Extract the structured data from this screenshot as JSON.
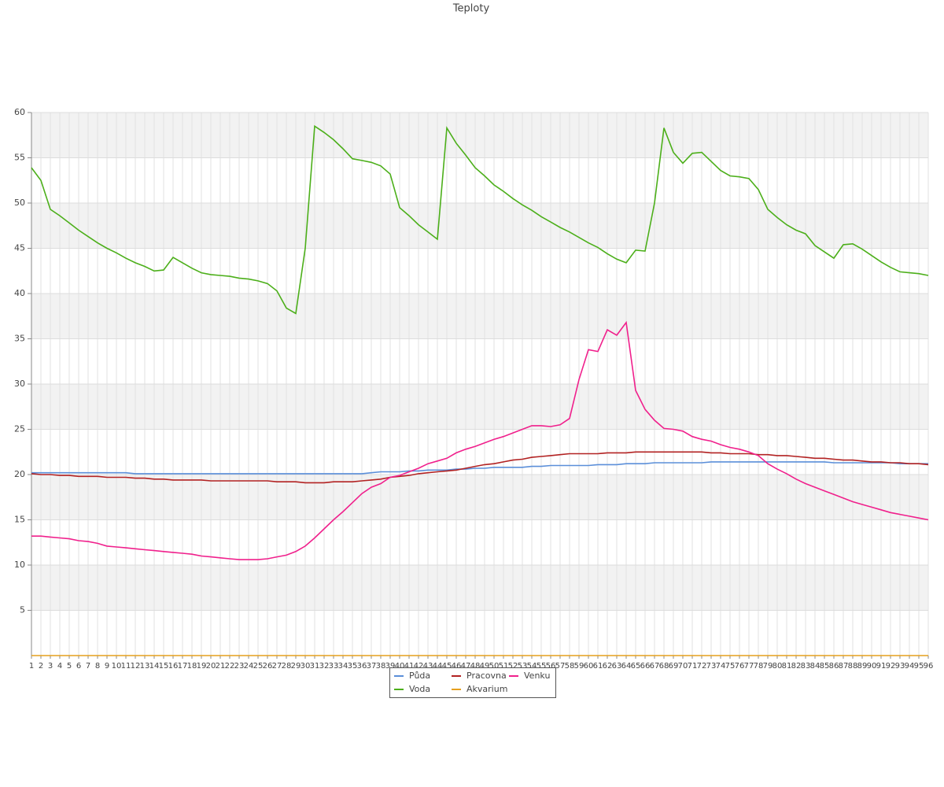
{
  "chart_data": {
    "type": "line",
    "title": "Teploty",
    "categories": [
      1,
      2,
      3,
      4,
      5,
      6,
      7,
      8,
      9,
      10,
      11,
      12,
      13,
      14,
      15,
      16,
      17,
      18,
      19,
      20,
      21,
      22,
      23,
      24,
      25,
      26,
      27,
      28,
      29,
      30,
      31,
      32,
      33,
      34,
      35,
      36,
      37,
      38,
      39,
      40,
      41,
      42,
      43,
      44,
      45,
      46,
      47,
      48,
      49,
      50,
      51,
      52,
      53,
      54,
      55,
      56,
      57,
      58,
      59,
      60,
      61,
      62,
      63,
      64,
      65,
      66,
      67,
      68,
      69,
      70,
      71,
      72,
      73,
      74,
      75,
      76,
      77,
      78,
      79,
      80,
      81,
      82,
      83,
      84,
      85,
      86,
      87,
      88,
      89,
      90,
      91,
      92,
      93,
      94,
      95,
      96
    ],
    "ylim": [
      0,
      60
    ],
    "yticks": [
      5,
      10,
      15,
      20,
      25,
      30,
      35,
      40,
      45,
      50,
      55,
      60
    ],
    "grid": true,
    "legend": "bottom",
    "series": [
      {
        "name": "Půda",
        "color": "#5b8fd9",
        "values": [
          20.2,
          20.2,
          20.2,
          20.2,
          20.2,
          20.2,
          20.2,
          20.2,
          20.2,
          20.2,
          20.2,
          20.1,
          20.1,
          20.1,
          20.1,
          20.1,
          20.1,
          20.1,
          20.1,
          20.1,
          20.1,
          20.1,
          20.1,
          20.1,
          20.1,
          20.1,
          20.1,
          20.1,
          20.1,
          20.1,
          20.1,
          20.1,
          20.1,
          20.1,
          20.1,
          20.1,
          20.2,
          20.3,
          20.3,
          20.3,
          20.4,
          20.4,
          20.5,
          20.5,
          20.5,
          20.6,
          20.6,
          20.7,
          20.7,
          20.8,
          20.8,
          20.8,
          20.8,
          20.9,
          20.9,
          21.0,
          21.0,
          21.0,
          21.0,
          21.0,
          21.1,
          21.1,
          21.1,
          21.2,
          21.2,
          21.2,
          21.3,
          21.3,
          21.3,
          21.3,
          21.3,
          21.3,
          21.4,
          21.4,
          21.4,
          21.4,
          21.4,
          21.4,
          21.4,
          21.4,
          21.4,
          21.4,
          21.4,
          21.4,
          21.4,
          21.3,
          21.3,
          21.3,
          21.3,
          21.3,
          21.3,
          21.3,
          21.2,
          21.2,
          21.2,
          21.2
        ]
      },
      {
        "name": "Voda",
        "color": "#4caf1a",
        "values": [
          53.9,
          52.5,
          49.3,
          48.6,
          47.8,
          47.0,
          46.3,
          45.6,
          45.0,
          44.5,
          43.9,
          43.4,
          43.0,
          42.5,
          42.6,
          44.0,
          43.4,
          42.8,
          42.3,
          42.1,
          42.0,
          41.9,
          41.7,
          41.6,
          41.4,
          41.1,
          40.3,
          38.4,
          37.8,
          45.0,
          58.5,
          57.8,
          57.0,
          56.0,
          54.9,
          54.7,
          54.5,
          54.1,
          53.2,
          49.5,
          48.6,
          47.6,
          46.8,
          46.0,
          58.3,
          56.6,
          55.3,
          53.9,
          53.0,
          52.0,
          51.3,
          50.5,
          49.8,
          49.2,
          48.5,
          47.9,
          47.3,
          46.8,
          46.2,
          45.6,
          45.1,
          44.4,
          43.8,
          43.4,
          44.8,
          44.7,
          50.0,
          58.3,
          55.6,
          54.4,
          55.5,
          55.6,
          54.6,
          53.6,
          53.0,
          52.9,
          52.7,
          51.5,
          49.3,
          48.4,
          47.6,
          47.0,
          46.6,
          45.3,
          44.6,
          43.9,
          45.4,
          45.5,
          44.9,
          44.2,
          43.5,
          42.9,
          42.4,
          42.3,
          42.2,
          42.0
        ]
      },
      {
        "name": "Pracovna",
        "color": "#b22222",
        "values": [
          20.1,
          20.0,
          20.0,
          19.9,
          19.9,
          19.8,
          19.8,
          19.8,
          19.7,
          19.7,
          19.7,
          19.6,
          19.6,
          19.5,
          19.5,
          19.4,
          19.4,
          19.4,
          19.4,
          19.3,
          19.3,
          19.3,
          19.3,
          19.3,
          19.3,
          19.3,
          19.2,
          19.2,
          19.2,
          19.1,
          19.1,
          19.1,
          19.2,
          19.2,
          19.2,
          19.3,
          19.4,
          19.5,
          19.7,
          19.8,
          19.9,
          20.1,
          20.2,
          20.3,
          20.4,
          20.5,
          20.7,
          20.9,
          21.1,
          21.2,
          21.4,
          21.6,
          21.7,
          21.9,
          22.0,
          22.1,
          22.2,
          22.3,
          22.3,
          22.3,
          22.3,
          22.4,
          22.4,
          22.4,
          22.5,
          22.5,
          22.5,
          22.5,
          22.5,
          22.5,
          22.5,
          22.5,
          22.4,
          22.4,
          22.3,
          22.3,
          22.3,
          22.2,
          22.2,
          22.1,
          22.1,
          22.0,
          21.9,
          21.8,
          21.8,
          21.7,
          21.6,
          21.6,
          21.5,
          21.4,
          21.4,
          21.3,
          21.3,
          21.2,
          21.2,
          21.1
        ]
      },
      {
        "name": "Akvarium",
        "color": "#e6a01e",
        "values": [
          0,
          0,
          0,
          0,
          0,
          0,
          0,
          0,
          0,
          0,
          0,
          0,
          0,
          0,
          0,
          0,
          0,
          0,
          0,
          0,
          0,
          0,
          0,
          0,
          0,
          0,
          0,
          0,
          0,
          0,
          0,
          0,
          0,
          0,
          0,
          0,
          0,
          0,
          0,
          0,
          0,
          0,
          0,
          0,
          0,
          0,
          0,
          0,
          0,
          0,
          0,
          0,
          0,
          0,
          0,
          0,
          0,
          0,
          0,
          0,
          0,
          0,
          0,
          0,
          0,
          0,
          0,
          0,
          0,
          0,
          0,
          0,
          0,
          0,
          0,
          0,
          0,
          0,
          0,
          0,
          0,
          0,
          0,
          0,
          0,
          0,
          0,
          0,
          0,
          0,
          0,
          0,
          0,
          0,
          0,
          0
        ]
      },
      {
        "name": "Venku",
        "color": "#f0208c",
        "values": [
          13.2,
          13.2,
          13.1,
          13.0,
          12.9,
          12.7,
          12.6,
          12.4,
          12.1,
          12.0,
          11.9,
          11.8,
          11.7,
          11.6,
          11.5,
          11.4,
          11.3,
          11.2,
          11.0,
          10.9,
          10.8,
          10.7,
          10.6,
          10.6,
          10.6,
          10.7,
          10.9,
          11.1,
          11.5,
          12.1,
          13.0,
          14.0,
          15.0,
          15.9,
          16.9,
          17.9,
          18.6,
          19.0,
          19.7,
          19.9,
          20.3,
          20.7,
          21.2,
          21.5,
          21.8,
          22.4,
          22.8,
          23.1,
          23.5,
          23.9,
          24.2,
          24.6,
          25.0,
          25.4,
          25.4,
          25.3,
          25.5,
          26.2,
          30.5,
          33.8,
          33.6,
          36.0,
          35.4,
          36.8,
          29.3,
          27.2,
          26.0,
          25.1,
          25.0,
          24.8,
          24.2,
          23.9,
          23.7,
          23.3,
          23.0,
          22.8,
          22.5,
          22.1,
          21.2,
          20.6,
          20.1,
          19.5,
          19.0,
          18.6,
          18.2,
          17.8,
          17.4,
          17.0,
          16.7,
          16.4,
          16.1,
          15.8,
          15.6,
          15.4,
          15.2,
          15.0
        ]
      }
    ]
  }
}
